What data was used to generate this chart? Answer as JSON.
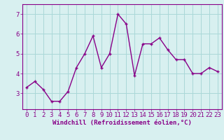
{
  "x": [
    0,
    1,
    2,
    3,
    4,
    5,
    6,
    7,
    8,
    9,
    10,
    11,
    12,
    13,
    14,
    15,
    16,
    17,
    18,
    19,
    20,
    21,
    22,
    23
  ],
  "y": [
    3.3,
    3.6,
    3.2,
    2.6,
    2.6,
    3.1,
    4.3,
    5.0,
    5.9,
    4.3,
    5.0,
    7.0,
    6.5,
    3.9,
    5.5,
    5.5,
    5.8,
    5.2,
    4.7,
    4.7,
    4.0,
    4.0,
    4.3,
    4.1
  ],
  "line_color": "#880088",
  "marker": "+",
  "bg_color": "#d8f0f0",
  "grid_color": "#aad8d8",
  "xlabel": "Windchill (Refroidissement éolien,°C)",
  "ylim": [
    2.2,
    7.5
  ],
  "yticks": [
    3,
    4,
    5,
    6,
    7
  ],
  "xticks": [
    0,
    1,
    2,
    3,
    4,
    5,
    6,
    7,
    8,
    9,
    10,
    11,
    12,
    13,
    14,
    15,
    16,
    17,
    18,
    19,
    20,
    21,
    22,
    23
  ],
  "tick_label_color": "#880088",
  "xlabel_color": "#880088",
  "xlabel_fontsize": 6.5,
  "tick_fontsize": 6.5,
  "linewidth": 1.0,
  "markersize": 3,
  "markeredgewidth": 1.0
}
